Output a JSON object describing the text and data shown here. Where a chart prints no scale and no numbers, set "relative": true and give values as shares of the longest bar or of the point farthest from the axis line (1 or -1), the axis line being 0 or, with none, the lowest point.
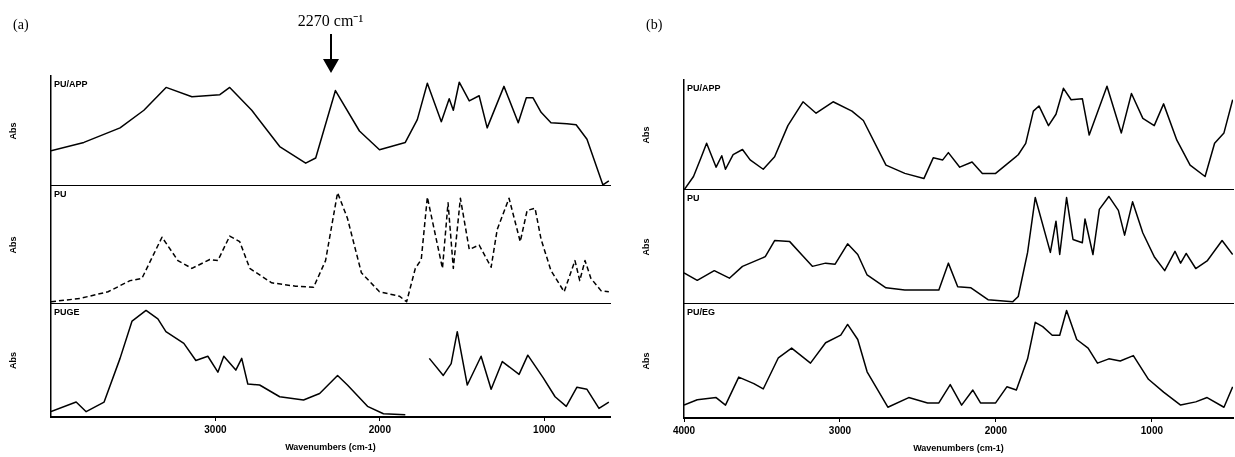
{
  "chart_data": [
    {
      "type": "line",
      "title": "(a)",
      "ylabel": "Abs",
      "relative": true,
      "xlim": [
        4000,
        600
      ],
      "xticks": [
        3000,
        2000,
        1000
      ],
      "tick_labels": false,
      "annotations": [
        "2270 cm⁻¹"
      ],
      "series": [
        {
          "name": "PU/APP",
          "color": "#000000",
          "x": [
            4000,
            3800,
            3580,
            3435,
            3300,
            3143,
            2973,
            2913,
            2779,
            2609,
            2451,
            2390,
            2270,
            2124,
            2002,
            1845,
            1772,
            1711,
            1626,
            1578,
            1553,
            1517,
            1456,
            1396,
            1347,
            1245,
            1158,
            1109,
            1068,
            1019,
            959,
            862,
            806,
            740,
            643,
            607
          ],
          "values": [
            0.34,
            0.42,
            0.56,
            0.73,
            0.95,
            0.86,
            0.88,
            0.95,
            0.73,
            0.38,
            0.22,
            0.27,
            0.92,
            0.53,
            0.35,
            0.42,
            0.64,
            0.99,
            0.62,
            0.84,
            0.73,
            1,
            0.82,
            0.87,
            0.56,
            0.96,
            0.61,
            0.85,
            0.85,
            0.71,
            0.61,
            0.6,
            0.59,
            0.45,
            0.01,
            0.05
          ]
        }
      ]
    },
    {
      "type": "line",
      "ylabel": "Abs",
      "relative": true,
      "xlim": [
        4000,
        600
      ],
      "xticks": [
        3000,
        2000,
        1000
      ],
      "tick_labels": false,
      "line_style": "dashed",
      "series": [
        {
          "name": "PU",
          "color": "#000000",
          "x": [
            4000,
            3823,
            3653,
            3519,
            3447,
            3325,
            3228,
            3143,
            3034,
            2985,
            2913,
            2852,
            2791,
            2658,
            2512,
            2403,
            2330,
            2257,
            2197,
            2112,
            2002,
            1881,
            1837,
            1784,
            1748,
            1711,
            1619,
            1585,
            1553,
            1510,
            1456,
            1396,
            1323,
            1286,
            1214,
            1146,
            1104,
            1056,
            1019,
            959,
            879,
            813,
            784,
            752,
            716,
            655,
            607
          ],
          "values": [
            0.02,
            0.05,
            0.11,
            0.21,
            0.23,
            0.6,
            0.39,
            0.32,
            0.4,
            0.39,
            0.61,
            0.56,
            0.32,
            0.19,
            0.16,
            0.15,
            0.39,
            1,
            0.77,
            0.28,
            0.11,
            0.07,
            0.02,
            0.32,
            0.4,
            0.96,
            0.32,
            0.91,
            0.32,
            0.95,
            0.49,
            0.53,
            0.33,
            0.67,
            0.95,
            0.56,
            0.84,
            0.86,
            0.58,
            0.3,
            0.11,
            0.39,
            0.21,
            0.39,
            0.23,
            0.12,
            0.11
          ]
        }
      ]
    },
    {
      "type": "line",
      "ylabel": "Abs",
      "xlabel": "Wavenumbers (cm-1)",
      "relative": true,
      "xlim": [
        4000,
        600
      ],
      "xticks": [
        3000,
        2000,
        1000
      ],
      "tick_labels": "x",
      "series": [
        {
          "name": "PUGE",
          "color": "#000000",
          "x": [
            4000,
            3847,
            3786,
            3726,
            3677,
            3580,
            3507,
            3422,
            3350,
            3301,
            3192,
            3119,
            3046,
            2985,
            2949,
            2876,
            2840,
            2803,
            2731,
            2609,
            2464,
            2366,
            2257,
            2197,
            2075,
            1978,
            1845,
            1770,
            1699,
            1614,
            1566,
            1529,
            1468,
            1384,
            1323,
            1255,
            1153,
            1100,
            1007,
            934,
            866,
            801,
            740,
            667,
            607
          ],
          "values": [
            0.05,
            0.14,
            0.05,
            0.1,
            0.14,
            0.55,
            0.9,
            1,
            0.92,
            0.8,
            0.69,
            0.53,
            0.57,
            0.42,
            0.57,
            0.44,
            0.55,
            0.31,
            0.3,
            0.19,
            0.16,
            0.22,
            0.39,
            0.3,
            0.1,
            0.03,
            0.02,
            null,
            0.55,
            0.39,
            0.5,
            0.8,
            0.3,
            0.57,
            0.26,
            0.52,
            0.4,
            0.58,
            0.37,
            0.19,
            0.1,
            0.28,
            0.26,
            0.08,
            0.14
          ]
        }
      ]
    },
    {
      "type": "line",
      "title": "(b)",
      "ylabel": "Abs",
      "relative": true,
      "xlim": [
        4000,
        480
      ],
      "xticks": [
        4000,
        3000,
        2000,
        1000
      ],
      "tick_labels": false,
      "series": [
        {
          "name": "PU/APP",
          "color": "#000000",
          "x": [
            4000,
            3939,
            3891,
            3855,
            3794,
            3758,
            3734,
            3685,
            3625,
            3576,
            3492,
            3419,
            3334,
            3237,
            3153,
            3044,
            2923,
            2850,
            2705,
            2584,
            2462,
            2402,
            2341,
            2305,
            2232,
            2153,
            2087,
            2002,
            1857,
            1809,
            1760,
            1724,
            1663,
            1615,
            1567,
            1518,
            1446,
            1402,
            1288,
            1196,
            1131,
            1058,
            985,
            925,
            840,
            755,
            659,
            598,
            538,
            482
          ],
          "values": [
            0,
            0.13,
            0.31,
            0.45,
            0.22,
            0.33,
            0.2,
            0.34,
            0.39,
            0.29,
            0.2,
            0.32,
            0.62,
            0.85,
            0.74,
            0.85,
            0.76,
            0.67,
            0.24,
            0.16,
            0.11,
            0.31,
            0.29,
            0.36,
            0.22,
            0.27,
            0.16,
            0.16,
            0.34,
            0.45,
            0.76,
            0.81,
            0.62,
            0.73,
            0.98,
            0.87,
            0.88,
            0.53,
            1,
            0.55,
            0.93,
            0.69,
            0.62,
            0.83,
            0.48,
            0.24,
            0.13,
            0.45,
            0.55,
            0.87
          ]
        }
      ]
    },
    {
      "type": "line",
      "ylabel": "Abs",
      "relative": true,
      "xlim": [
        4000,
        480
      ],
      "xticks": [
        4000,
        3000,
        2000,
        1000
      ],
      "tick_labels": false,
      "series": [
        {
          "name": "PU",
          "color": "#000000",
          "x": [
            4000,
            3915,
            3806,
            3709,
            3625,
            3479,
            3419,
            3322,
            3177,
            3092,
            3031,
            2951,
            2886,
            2826,
            2705,
            2584,
            2366,
            2305,
            2245,
            2160,
            2051,
            1893,
            1857,
            1797,
            1748,
            1651,
            1615,
            1591,
            1547,
            1506,
            1446,
            1429,
            1378,
            1337,
            1276,
            1215,
            1175,
            1124,
            1058,
            985,
            918,
            852,
            816,
            780,
            719,
            646,
            550,
            482
          ],
          "values": [
            0.29,
            0.22,
            0.31,
            0.24,
            0.35,
            0.44,
            0.59,
            0.58,
            0.35,
            0.38,
            0.37,
            0.56,
            0.46,
            0.27,
            0.15,
            0.13,
            0.13,
            0.38,
            0.16,
            0.15,
            0.04,
            0.02,
            0.07,
            0.48,
            0.99,
            0.48,
            0.77,
            0.46,
            0.99,
            0.6,
            0.57,
            0.79,
            0.46,
            0.88,
            1,
            0.87,
            0.64,
            0.95,
            0.66,
            0.44,
            0.31,
            0.49,
            0.38,
            0.47,
            0.33,
            0.4,
            0.59,
            0.46
          ]
        }
      ]
    },
    {
      "type": "line",
      "ylabel": "Abs",
      "xlabel": "Wavenumbers (cm-1)",
      "relative": true,
      "xlim": [
        4000,
        480
      ],
      "xticks": [
        4000,
        3000,
        2000,
        1000
      ],
      "tick_labels": "x",
      "series": [
        {
          "name": "PU/EG",
          "color": "#000000",
          "x": [
            4000,
            3915,
            3794,
            3734,
            3649,
            3552,
            3492,
            3395,
            3310,
            3189,
            3092,
            2995,
            2951,
            2886,
            2826,
            2693,
            2559,
            2438,
            2366,
            2293,
            2220,
            2148,
            2099,
            2002,
            1930,
            1869,
            1797,
            1748,
            1700,
            1639,
            1591,
            1547,
            1482,
            1409,
            1349,
            1276,
            1203,
            1119,
            1022,
            925,
            816,
            719,
            646,
            538,
            482
          ],
          "values": [
            0.12,
            0.17,
            0.19,
            0.12,
            0.38,
            0.32,
            0.27,
            0.56,
            0.65,
            0.51,
            0.7,
            0.77,
            0.87,
            0.73,
            0.43,
            0.1,
            0.19,
            0.14,
            0.14,
            0.31,
            0.12,
            0.26,
            0.14,
            0.14,
            0.29,
            0.26,
            0.55,
            0.89,
            0.85,
            0.77,
            0.77,
            1,
            0.73,
            0.65,
            0.51,
            0.55,
            0.53,
            0.58,
            0.36,
            0.24,
            0.12,
            0.15,
            0.19,
            0.1,
            0.29
          ]
        }
      ]
    }
  ]
}
